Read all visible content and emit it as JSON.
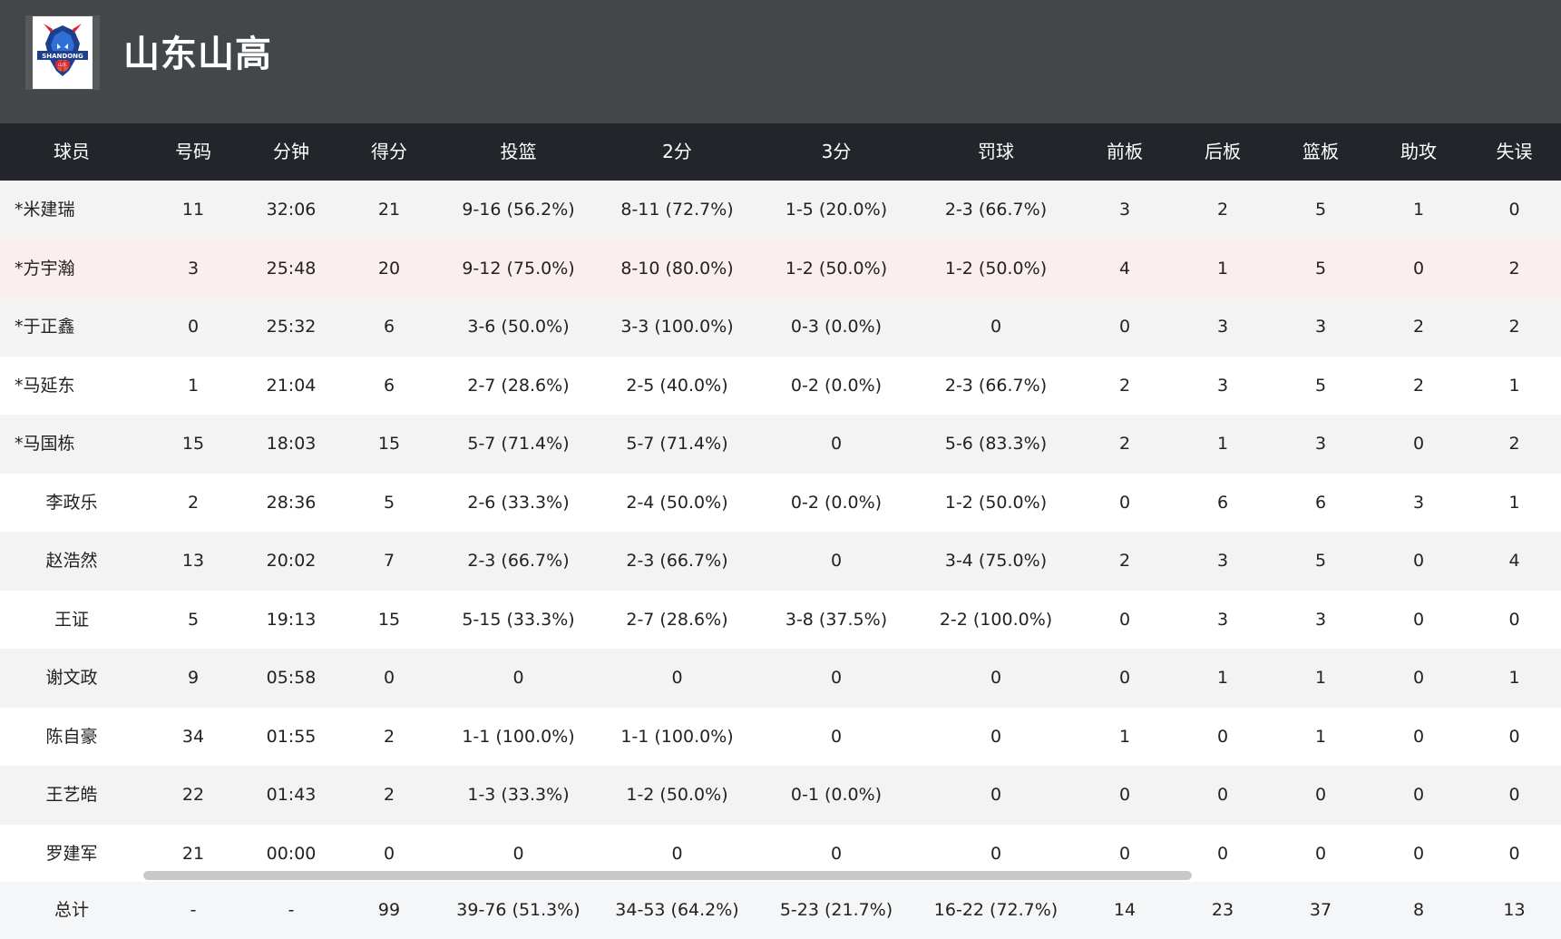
{
  "team": {
    "name": "山东山高",
    "logo_text": "SHANDONG",
    "logo_subtext": "山东"
  },
  "columns": [
    "球员",
    "号码",
    "分钟",
    "得分",
    "投篮",
    "2分",
    "3分",
    "罚球",
    "前板",
    "后板",
    "篮板",
    "助攻",
    "失误"
  ],
  "players": [
    {
      "name": "*米建瑞",
      "number": "11",
      "minutes": "32:06",
      "points": "21",
      "fg": "9-16 (56.2%)",
      "two": "8-11 (72.7%)",
      "three": "1-5 (20.0%)",
      "ft": "2-3 (66.7%)",
      "oreb": "3",
      "dreb": "2",
      "reb": "5",
      "ast": "1",
      "tov": "0"
    },
    {
      "name": "*方宇瀚",
      "number": "3",
      "minutes": "25:48",
      "points": "20",
      "fg": "9-12 (75.0%)",
      "two": "8-10 (80.0%)",
      "three": "1-2 (50.0%)",
      "ft": "1-2 (50.0%)",
      "oreb": "4",
      "dreb": "1",
      "reb": "5",
      "ast": "0",
      "tov": "2"
    },
    {
      "name": "*于正鑫",
      "number": "0",
      "minutes": "25:32",
      "points": "6",
      "fg": "3-6 (50.0%)",
      "two": "3-3 (100.0%)",
      "three": "0-3 (0.0%)",
      "ft": "0",
      "oreb": "0",
      "dreb": "3",
      "reb": "3",
      "ast": "2",
      "tov": "2"
    },
    {
      "name": "*马延东",
      "number": "1",
      "minutes": "21:04",
      "points": "6",
      "fg": "2-7 (28.6%)",
      "two": "2-5 (40.0%)",
      "three": "0-2 (0.0%)",
      "ft": "2-3 (66.7%)",
      "oreb": "2",
      "dreb": "3",
      "reb": "5",
      "ast": "2",
      "tov": "1"
    },
    {
      "name": "*马国栋",
      "number": "15",
      "minutes": "18:03",
      "points": "15",
      "fg": "5-7 (71.4%)",
      "two": "5-7 (71.4%)",
      "three": "0",
      "ft": "5-6 (83.3%)",
      "oreb": "2",
      "dreb": "1",
      "reb": "3",
      "ast": "0",
      "tov": "2"
    },
    {
      "name": "李政乐",
      "number": "2",
      "minutes": "28:36",
      "points": "5",
      "fg": "2-6 (33.3%)",
      "two": "2-4 (50.0%)",
      "three": "0-2 (0.0%)",
      "ft": "1-2 (50.0%)",
      "oreb": "0",
      "dreb": "6",
      "reb": "6",
      "ast": "3",
      "tov": "1"
    },
    {
      "name": "赵浩然",
      "number": "13",
      "minutes": "20:02",
      "points": "7",
      "fg": "2-3 (66.7%)",
      "two": "2-3 (66.7%)",
      "three": "0",
      "ft": "3-4 (75.0%)",
      "oreb": "2",
      "dreb": "3",
      "reb": "5",
      "ast": "0",
      "tov": "4"
    },
    {
      "name": "王证",
      "number": "5",
      "minutes": "19:13",
      "points": "15",
      "fg": "5-15 (33.3%)",
      "two": "2-7 (28.6%)",
      "three": "3-8 (37.5%)",
      "ft": "2-2 (100.0%)",
      "oreb": "0",
      "dreb": "3",
      "reb": "3",
      "ast": "0",
      "tov": "0"
    },
    {
      "name": "谢文政",
      "number": "9",
      "minutes": "05:58",
      "points": "0",
      "fg": "0",
      "two": "0",
      "three": "0",
      "ft": "0",
      "oreb": "0",
      "dreb": "1",
      "reb": "1",
      "ast": "0",
      "tov": "1"
    },
    {
      "name": "陈自豪",
      "number": "34",
      "minutes": "01:55",
      "points": "2",
      "fg": "1-1 (100.0%)",
      "two": "1-1 (100.0%)",
      "three": "0",
      "ft": "0",
      "oreb": "1",
      "dreb": "0",
      "reb": "1",
      "ast": "0",
      "tov": "0"
    },
    {
      "name": "王艺皓",
      "number": "22",
      "minutes": "01:43",
      "points": "2",
      "fg": "1-3 (33.3%)",
      "two": "1-2 (50.0%)",
      "three": "0-1 (0.0%)",
      "ft": "0",
      "oreb": "0",
      "dreb": "0",
      "reb": "0",
      "ast": "0",
      "tov": "0"
    },
    {
      "name": "罗建军",
      "number": "21",
      "minutes": "00:00",
      "points": "0",
      "fg": "0",
      "two": "0",
      "three": "0",
      "ft": "0",
      "oreb": "0",
      "dreb": "0",
      "reb": "0",
      "ast": "0",
      "tov": "0"
    }
  ],
  "totals": {
    "name": "总计",
    "number": "-",
    "minutes": "-",
    "points": "99",
    "fg": "39-76 (51.3%)",
    "two": "34-53 (64.2%)",
    "three": "5-23 (21.7%)",
    "ft": "16-22 (72.7%)",
    "oreb": "14",
    "dreb": "23",
    "reb": "37",
    "ast": "8",
    "tov": "13"
  },
  "colors": {
    "header_bg": "#43474a",
    "column_header_bg": "#22262b",
    "row_alt": "#f3f3f3",
    "row_highlight": "#fbeeee",
    "total_bg": "#f5f6f8",
    "scrollbar": "#c8c8c8"
  }
}
